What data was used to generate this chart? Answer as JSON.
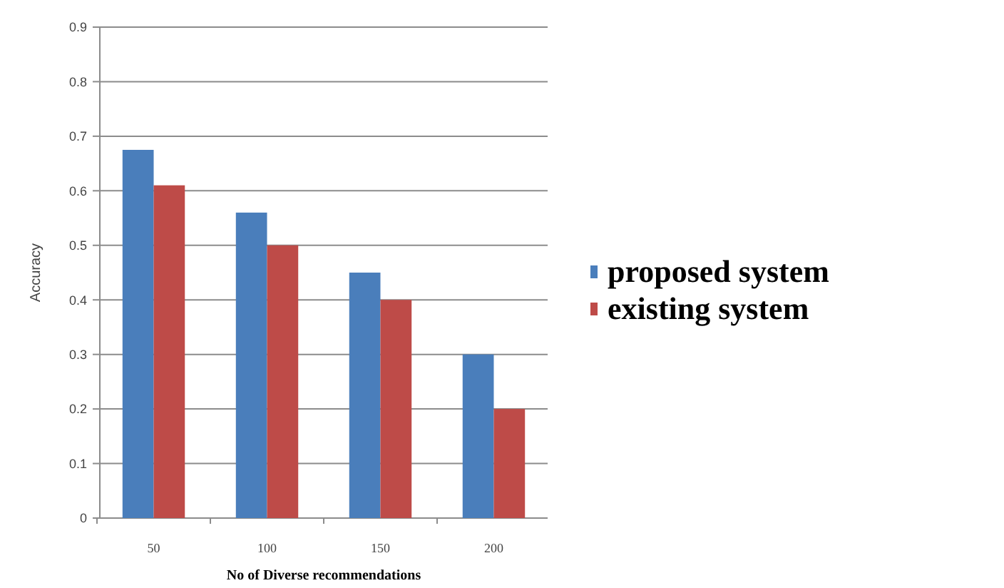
{
  "chart_data": {
    "type": "bar",
    "xlabel": "No of Diverse recommendations",
    "ylabel": "Accuracy",
    "categories": [
      "50",
      "100",
      "150",
      "200"
    ],
    "series": [
      {
        "name": "proposed system",
        "color": "#4a7ebb",
        "values": [
          0.675,
          0.56,
          0.45,
          0.3
        ]
      },
      {
        "name": "existing system",
        "color": "#be4b48",
        "values": [
          0.61,
          0.5,
          0.4,
          0.2
        ]
      }
    ],
    "ylim": [
      0,
      0.9
    ],
    "yticks": [
      0,
      0.1,
      0.2,
      0.3,
      0.4,
      0.5,
      0.6,
      0.7,
      0.8,
      0.9
    ],
    "grid": "y",
    "legend": "right"
  }
}
